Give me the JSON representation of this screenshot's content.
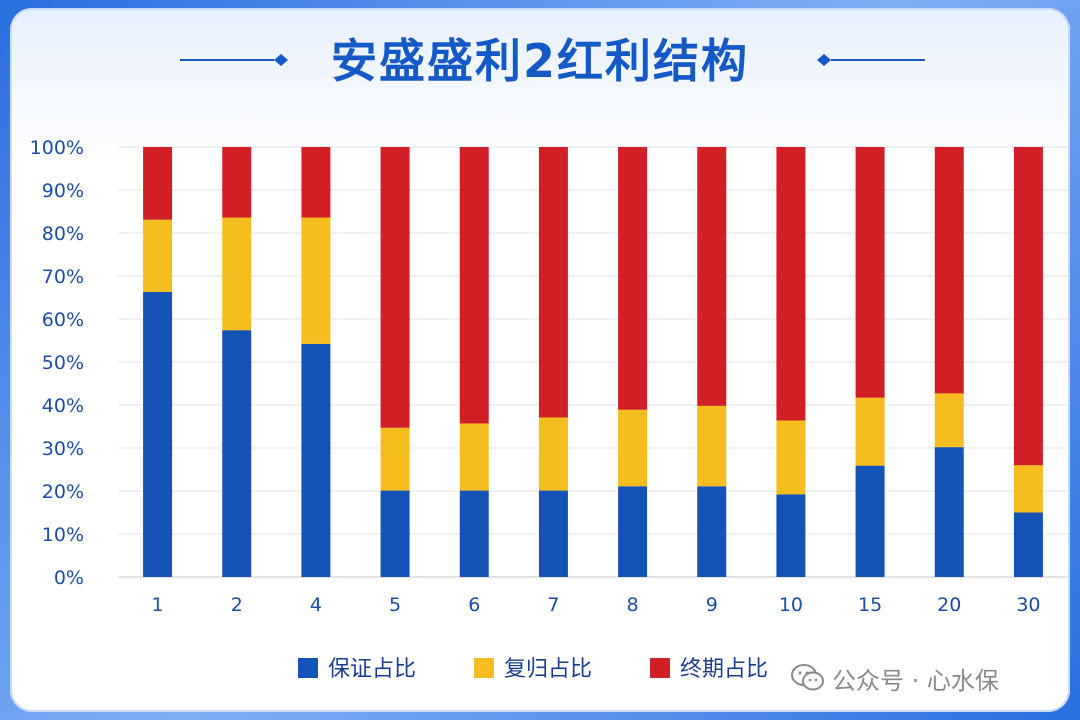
{
  "title": "安盛盛利2红利结构",
  "watermark": {
    "icon": "wechat-icon",
    "text": "公众号 · 心水保"
  },
  "colors": {
    "guaranteed": "#1552b5",
    "reversionary": "#f5bd1e",
    "terminal": "#d21f25",
    "title": "#1559c6",
    "axis_text": "#1a4ea8"
  },
  "chart_data": {
    "type": "bar",
    "stacked": true,
    "normalized": true,
    "categories": [
      "1",
      "2",
      "4",
      "5",
      "6",
      "7",
      "8",
      "9",
      "10",
      "15",
      "20",
      "30"
    ],
    "series": [
      {
        "name": "保证占比",
        "values": [
          66.3,
          57.4,
          54.2,
          20.1,
          20.1,
          20.1,
          21.1,
          21.1,
          19.2,
          25.9,
          30.2,
          15.0
        ]
      },
      {
        "name": "复归占比",
        "values": [
          16.8,
          26.2,
          29.4,
          14.6,
          15.6,
          17.0,
          17.8,
          18.7,
          17.2,
          15.8,
          12.5,
          11.0
        ]
      },
      {
        "name": "终期占比",
        "values": [
          16.9,
          16.4,
          16.4,
          65.3,
          64.3,
          62.9,
          61.1,
          60.2,
          63.6,
          58.3,
          57.3,
          74.0
        ]
      }
    ],
    "yticks": [
      "0%",
      "10%",
      "20%",
      "30%",
      "40%",
      "50%",
      "60%",
      "70%",
      "80%",
      "90%",
      "100%"
    ],
    "ylim": [
      0,
      100
    ],
    "grid": true,
    "legend_position": "bottom"
  }
}
